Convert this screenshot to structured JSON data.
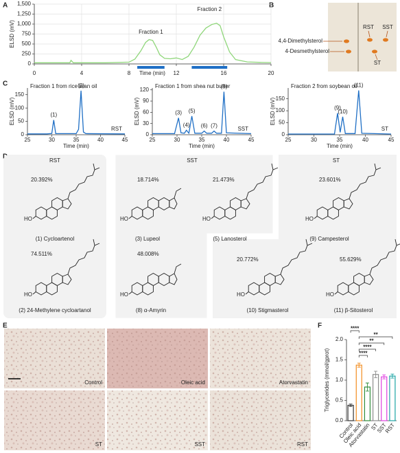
{
  "panel_labels": [
    "A",
    "B",
    "C",
    "D",
    "E",
    "F"
  ],
  "chart_data": [
    {
      "type": "line",
      "ylabel": "ELSD (mV)",
      "xlabel": "Time (min)",
      "color": "#8fd67a",
      "grid": true,
      "x": [
        0,
        1,
        2,
        3,
        3.1,
        3.3,
        4,
        6,
        8,
        8.5,
        9,
        9.4,
        9.7,
        10,
        10.3,
        10.6,
        11,
        11.5,
        12,
        12.5,
        13,
        13.5,
        14,
        14.5,
        15,
        15.4,
        15.7,
        16,
        16.5,
        17,
        18,
        19,
        20
      ],
      "values": [
        30,
        30,
        30,
        30,
        90,
        30,
        30,
        30,
        45,
        120,
        330,
        540,
        610,
        590,
        420,
        230,
        140,
        130,
        150,
        110,
        190,
        420,
        720,
        900,
        990,
        1020,
        960,
        680,
        300,
        110,
        50,
        40,
        35
      ],
      "xlim": [
        0,
        20
      ],
      "xticks": [
        0,
        4,
        8,
        12,
        16,
        20
      ],
      "ylim": [
        0,
        1500
      ],
      "yticks": [
        0,
        250,
        500,
        750,
        {
          "value": 1000,
          "label": "1,000"
        },
        {
          "value": 1250,
          "label": "1,250"
        },
        {
          "value": 1500,
          "label": "1,500"
        }
      ],
      "fractions": [
        {
          "name": "Fraction 1",
          "range": [
            8.7,
            11
          ]
        },
        {
          "name": "Fraction 2",
          "range": [
            13.3,
            16.3
          ]
        }
      ]
    },
    {
      "type": "line",
      "title": "Fraction 1 from rice bran oil",
      "sample": "RST",
      "ylabel": "ELSD (mV)",
      "xlabel": "Time (min)",
      "color": "#1f6fc5",
      "x": [
        25,
        29,
        30,
        30.4,
        30.8,
        35,
        35.5,
        36,
        36.5,
        37,
        45
      ],
      "values": [
        3,
        3,
        5,
        55,
        4,
        4,
        20,
        165,
        10,
        4,
        3
      ],
      "point_labels": [
        null,
        null,
        null,
        "(1)",
        null,
        null,
        null,
        "(2)",
        null,
        null,
        null
      ],
      "xlim": [
        25,
        45
      ],
      "xticks": [
        25,
        30,
        35,
        40,
        45
      ],
      "ylim": [
        0,
        175
      ],
      "yticks": [
        0,
        50,
        100,
        150
      ]
    },
    {
      "type": "line",
      "title": "Fraction 1 from shea nut butter",
      "sample": "SST",
      "ylabel": "ELSD (mV)",
      "xlabel": "Time (min)",
      "color": "#1f6fc5",
      "x": [
        25,
        29.5,
        30.3,
        30.8,
        31.5,
        31.9,
        32.4,
        33,
        33.6,
        35,
        35.5,
        36,
        37,
        37.5,
        38,
        39,
        39.5,
        40,
        45
      ],
      "values": [
        3,
        3,
        45,
        5,
        4,
        12,
        4,
        50,
        4,
        4,
        10,
        4,
        4,
        10,
        4,
        4,
        115,
        5,
        3
      ],
      "point_labels": [
        null,
        null,
        "(3)",
        null,
        null,
        "(4)",
        null,
        "(5)",
        null,
        null,
        "(6)",
        null,
        null,
        "(7)",
        null,
        null,
        "(8)",
        null,
        null
      ],
      "xlim": [
        25,
        45
      ],
      "xticks": [
        25,
        30,
        35,
        40,
        45
      ],
      "ylim": [
        0,
        125
      ],
      "yticks": [
        0,
        30,
        60,
        90,
        120
      ]
    },
    {
      "type": "line",
      "title": "Fraction 2 from soybean oil",
      "sample": "ST",
      "ylabel": "ELSD (mV)",
      "xlabel": "Time (min)",
      "color": "#1f6fc5",
      "x": [
        25,
        34,
        34.6,
        35.1,
        35.6,
        36.1,
        38,
        38.7,
        39.3,
        45
      ],
      "values": [
        3,
        3,
        90,
        10,
        75,
        5,
        5,
        185,
        6,
        3
      ],
      "point_labels": [
        null,
        null,
        "(9)",
        null,
        "(10)",
        null,
        null,
        "(11)",
        null,
        null
      ],
      "xlim": [
        25,
        45
      ],
      "xticks": [
        25,
        30,
        35,
        40,
        45
      ],
      "ylim": [
        0,
        195
      ],
      "yticks": [
        0,
        50,
        100,
        150
      ]
    },
    {
      "type": "bar",
      "ylabel": "Triglycerides (mmol/gprot)",
      "categories": [
        "Control",
        "Oleic acid",
        "Atorvastatin",
        "ST",
        "SST",
        "RST"
      ],
      "values": [
        0.38,
        1.37,
        0.83,
        1.14,
        1.08,
        1.1
      ],
      "errors": [
        0.03,
        0.05,
        0.1,
        0.08,
        0.05,
        0.05
      ],
      "colors": [
        "#333333",
        "#f28c1e",
        "#2e8b3a",
        "#8c8c8c",
        "#e040e0",
        "#1aa3a3"
      ],
      "ylim": [
        0,
        2
      ],
      "yticks": [
        {
          "value": 0,
          "label": "0.0"
        },
        0.5,
        {
          "value": 1,
          "label": "1.0"
        },
        1.5,
        {
          "value": 2,
          "label": "2.0"
        }
      ],
      "comparisons": [
        {
          "between": [
            0,
            1
          ],
          "label": "****"
        },
        {
          "between": [
            1,
            5
          ],
          "label": "**"
        },
        {
          "between": [
            1,
            4
          ],
          "label": "**"
        },
        {
          "between": [
            1,
            3
          ],
          "label": "****"
        },
        {
          "between": [
            1,
            2
          ],
          "label": "****"
        }
      ]
    }
  ],
  "tlc": {
    "spot_labels": [
      "4,4-Dimethylsterol",
      "4-Desmethylsterol"
    ],
    "lane_labels": [
      "RST",
      "SST",
      "ST"
    ]
  },
  "structures": {
    "hydroxyl": "HO",
    "groups": [
      {
        "label": "RST",
        "compounds": [
          {
            "percent": "20.392%",
            "name": "(1) Cycloartenol"
          },
          {
            "percent": "74.511%",
            "name": "(2) 24-Methylene cycloartanol"
          }
        ]
      },
      {
        "label": "SST",
        "compounds": [
          {
            "percent": "18.714%",
            "name": "(3) Lupeol"
          },
          {
            "percent": "21.473%",
            "name": "(5) Lanosterol"
          },
          {
            "percent": "48.008%",
            "name": "(8) α-Amyrin"
          }
        ]
      },
      {
        "label": "ST",
        "compounds": [
          {
            "percent": "23.601%",
            "name": "(9) Campesterol"
          },
          {
            "percent": "20.772%",
            "name": "(10) Stigmasterol"
          },
          {
            "percent": "55.629%",
            "name": "(11) β-Sitosterol"
          }
        ]
      }
    ]
  },
  "histology": {
    "images": [
      "Control",
      "Oleic acid",
      "Atorvastatin",
      "ST",
      "SST",
      "RST"
    ]
  }
}
